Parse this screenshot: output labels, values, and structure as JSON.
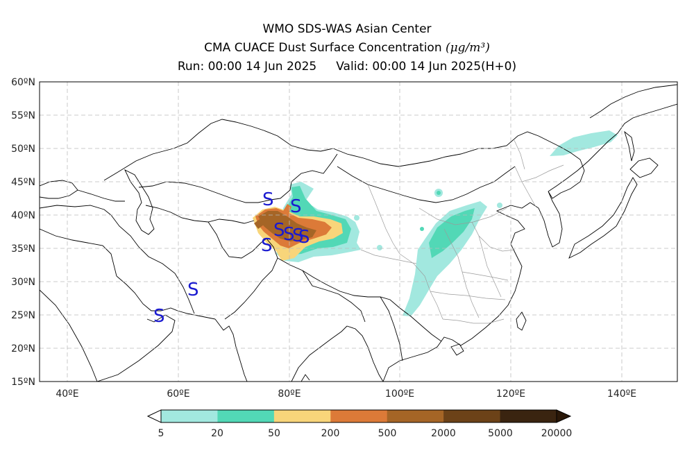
{
  "header": {
    "line1": "WMO SDS-WAS Asian Center",
    "line2": "CMA CUACE Dust Surface Concentration",
    "unit": "(μg/m³)",
    "run": "Run: 00:00 14 Jun 2025",
    "valid": "Valid: 00:00 14 Jun 2025(H+0)"
  },
  "map": {
    "lat_labels": [
      "60ºN",
      "55ºN",
      "50ºN",
      "45ºN",
      "40ºN",
      "35ºN",
      "30ºN",
      "25ºN",
      "20ºN",
      "15ºN"
    ],
    "lon_labels": [
      "40ºE",
      "60ºE",
      "80ºE",
      "100ºE",
      "120ºE",
      "140ºE"
    ],
    "lon_range": [
      35,
      150
    ],
    "lat_range": [
      15,
      60
    ],
    "gridlines": true,
    "station_marker": "S",
    "marker_color": "#1a1ad0"
  },
  "colorbar": {
    "ticks": [
      "5",
      "20",
      "50",
      "200",
      "500",
      "2000",
      "5000",
      "20000"
    ],
    "colors": [
      "#a2e8df",
      "#52d8b6",
      "#f8d57a",
      "#dc7a38",
      "#a56526",
      "#6c4218",
      "#3a2410"
    ]
  }
}
